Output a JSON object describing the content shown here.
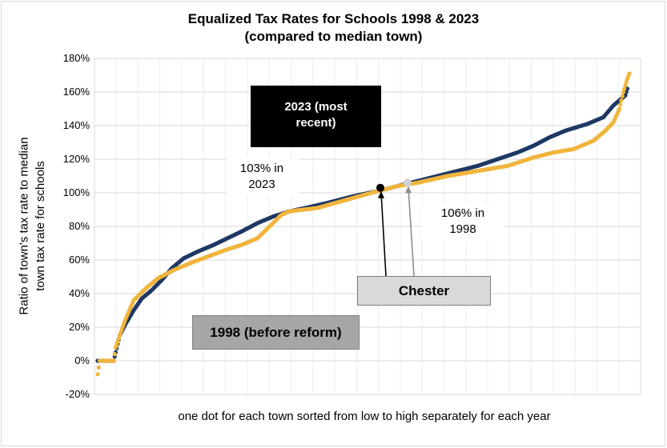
{
  "chart_data": {
    "type": "scatter",
    "title": "Equalized Tax Rates for Schools 1998 & 2023",
    "subtitle": "(compared to median town)",
    "ylabel_line1": "Ratio of town's tax rate to median",
    "ylabel_line2": "town tax rate for schools",
    "xlabel": "one dot for each town sorted from low to high separately for each year",
    "ylim": [
      -20,
      180
    ],
    "yticks": [
      "180%",
      "160%",
      "140%",
      "120%",
      "100%",
      "80%",
      "60%",
      "40%",
      "20%",
      "0%",
      "-20%"
    ],
    "grid": true,
    "xlim": [
      0,
      270
    ],
    "series": [
      {
        "name": "1998",
        "color": "#1f3864",
        "anchors": [
          [
            0,
            0
          ],
          [
            8,
            0
          ],
          [
            9,
            5
          ],
          [
            11,
            15
          ],
          [
            14,
            22
          ],
          [
            18,
            30
          ],
          [
            22,
            37
          ],
          [
            27,
            42
          ],
          [
            32,
            48
          ],
          [
            37,
            55
          ],
          [
            43,
            61
          ],
          [
            50,
            65
          ],
          [
            58,
            69
          ],
          [
            65,
            73
          ],
          [
            72,
            77
          ],
          [
            80,
            82
          ],
          [
            88,
            86
          ],
          [
            96,
            89
          ],
          [
            104,
            91
          ],
          [
            115,
            94
          ],
          [
            128,
            98
          ],
          [
            140,
            101
          ],
          [
            150,
            104
          ],
          [
            160,
            107
          ],
          [
            170,
            110
          ],
          [
            180,
            113
          ],
          [
            190,
            116
          ],
          [
            200,
            120
          ],
          [
            210,
            124
          ],
          [
            218,
            128
          ],
          [
            226,
            133
          ],
          [
            234,
            137
          ],
          [
            245,
            141
          ],
          [
            253,
            145
          ],
          [
            258,
            152
          ],
          [
            262,
            156
          ],
          [
            264,
            158
          ],
          [
            265,
            162
          ]
        ]
      },
      {
        "name": "2023",
        "color": "#f0b53c",
        "anchors": [
          [
            0,
            -8
          ],
          [
            1,
            0
          ],
          [
            8,
            0
          ],
          [
            9,
            8
          ],
          [
            11,
            15
          ],
          [
            14,
            25
          ],
          [
            18,
            36
          ],
          [
            24,
            43
          ],
          [
            30,
            49
          ],
          [
            38,
            54
          ],
          [
            46,
            58
          ],
          [
            55,
            62
          ],
          [
            64,
            66
          ],
          [
            72,
            69
          ],
          [
            80,
            73
          ],
          [
            86,
            80
          ],
          [
            92,
            87
          ],
          [
            96,
            89
          ],
          [
            110,
            91
          ],
          [
            125,
            96
          ],
          [
            140,
            101
          ],
          [
            150,
            104
          ],
          [
            160,
            106
          ],
          [
            175,
            110
          ],
          [
            190,
            113
          ],
          [
            205,
            116
          ],
          [
            218,
            121
          ],
          [
            228,
            124
          ],
          [
            238,
            126
          ],
          [
            248,
            131
          ],
          [
            254,
            137
          ],
          [
            258,
            142
          ],
          [
            261,
            150
          ],
          [
            263,
            160
          ],
          [
            265,
            168
          ],
          [
            266,
            171
          ]
        ]
      }
    ],
    "highlight": [
      {
        "label": "2023",
        "value": 103,
        "color": "#000000"
      },
      {
        "label": "1998",
        "value": 106,
        "color": "#d0d0d0"
      }
    ],
    "annotations": {
      "box_2023": [
        "2023 (most",
        "recent)"
      ],
      "box_1998": "1998 (before reform)",
      "chester": "Chester",
      "note_2023": [
        "103% in",
        "2023"
      ],
      "note_1998": [
        "106% in",
        "1998"
      ]
    }
  }
}
